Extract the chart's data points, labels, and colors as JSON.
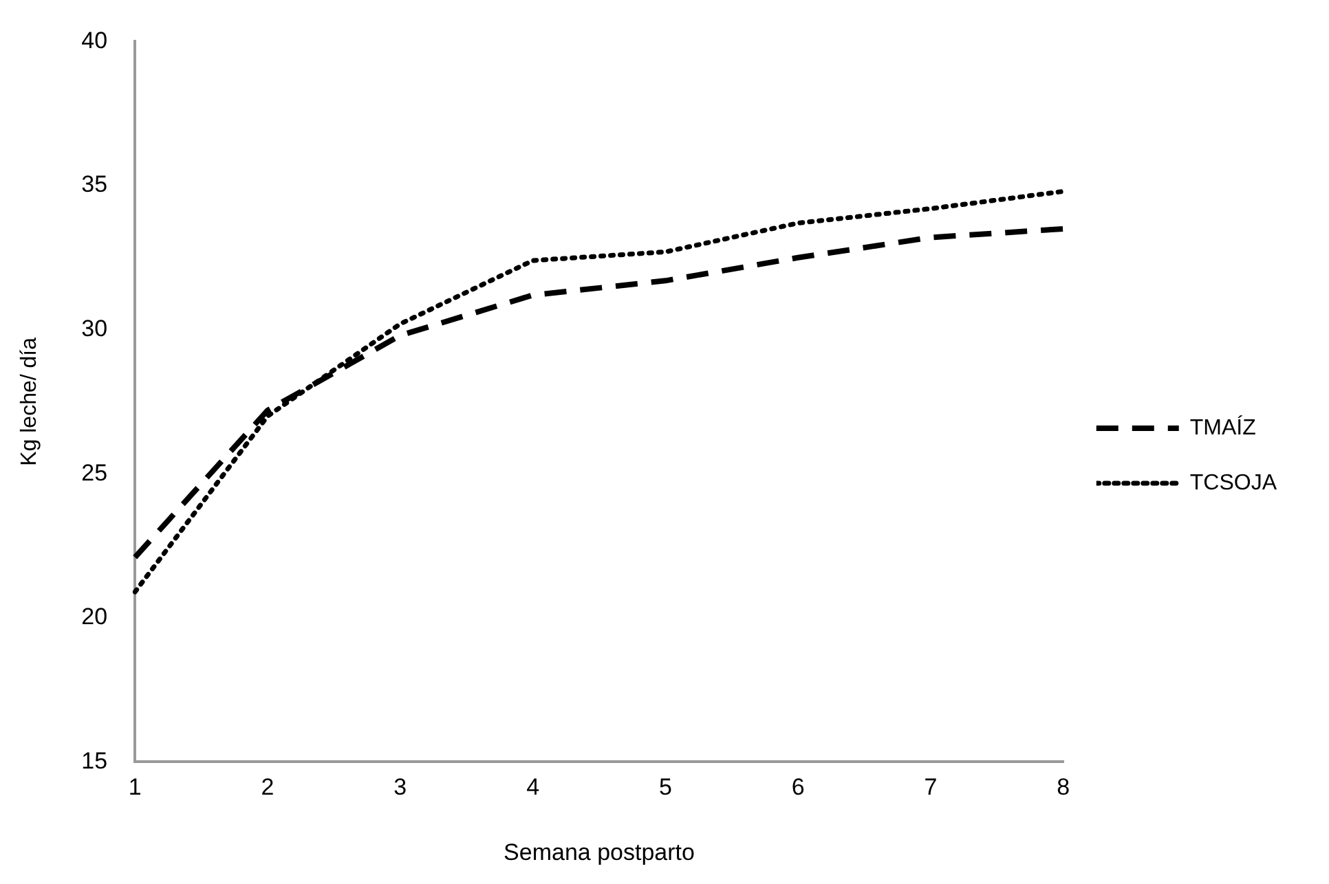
{
  "chart_data": {
    "type": "line",
    "xlabel": "Semana postparto",
    "ylabel": "Kg leche/ día",
    "categories": [
      "1",
      "2",
      "3",
      "4",
      "5",
      "6",
      "7",
      "8"
    ],
    "series": [
      {
        "name": "TMAÍZ",
        "color": "#000000",
        "line_style": "dashed",
        "values": [
          22.1,
          27.2,
          29.8,
          31.2,
          31.7,
          32.5,
          33.2,
          33.5
        ]
      },
      {
        "name": "TCSOJA",
        "color": "#000000",
        "line_style": "dotted",
        "values": [
          20.9,
          27.0,
          30.2,
          32.4,
          32.7,
          33.7,
          34.2,
          34.8
        ]
      }
    ],
    "ylim": [
      15,
      40
    ],
    "yticks": [
      15,
      20,
      25,
      30,
      35,
      40
    ],
    "grid": false,
    "legend": "right",
    "marker": "none"
  }
}
